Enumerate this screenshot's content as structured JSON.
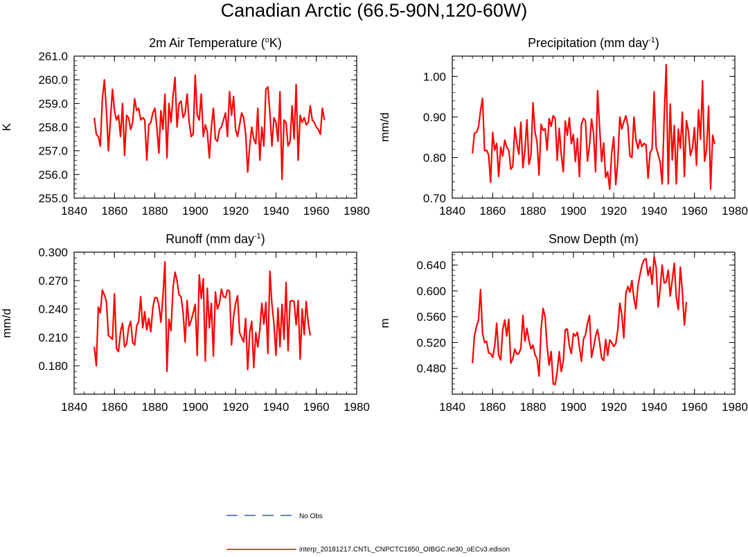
{
  "figure": {
    "title": "Canadian Arctic (66.5-90N,120-60W)"
  },
  "legend": {
    "obs_label": "No Obs",
    "model_label": "interp_20181217.CNTL_CNPCTC1850_OIBGC.ne30_oECv3.edison",
    "obs_color": "#3050ff",
    "model_color": "#ff0000"
  },
  "chart_data": [
    {
      "type": "line",
      "title": "2m Air Temperature (",
      "title_sup": "o",
      "title_end": "K)",
      "ylabel": "K",
      "xlabel": "",
      "xlim": [
        1840,
        1980
      ],
      "ylim": [
        255.0,
        261.0
      ],
      "xticks": [
        1840,
        1860,
        1880,
        1900,
        1920,
        1940,
        1960,
        1980
      ],
      "yticks": [
        255.0,
        256.0,
        257.0,
        258.0,
        259.0,
        260.0,
        261.0
      ],
      "ytick_labels": [
        "255.0",
        "256.0",
        "257.0",
        "258.0",
        "259.0",
        "260.0",
        "261.0"
      ],
      "x_start": 1850,
      "series": [
        {
          "name": "interp_20181217.CNTL_CNPCTC1850_OIBGC.ne30_oECv3.edison",
          "color": "#ff0000",
          "values": [
            258.4,
            257.7,
            257.6,
            257.2,
            259.2,
            260.0,
            258.7,
            257.0,
            258.3,
            259.6,
            258.7,
            258.3,
            258.5,
            257.6,
            259.0,
            256.8,
            258.5,
            258.4,
            257.9,
            258.2,
            259.2,
            258.7,
            258.8,
            258.3,
            258.4,
            258.3,
            256.6,
            258.1,
            258.2,
            258.6,
            258.8,
            258.0,
            256.9,
            258.7,
            257.9,
            259.4,
            256.7,
            259.0,
            258.2,
            259.3,
            260.1,
            258.0,
            259.0,
            259.1,
            258.4,
            258.6,
            259.4,
            258.2,
            257.6,
            257.7,
            260.2,
            258.5,
            258.3,
            259.4,
            257.6,
            258.1,
            257.8,
            256.7,
            258.0,
            258.8,
            257.5,
            257.4,
            257.9,
            258.0,
            258.3,
            258.6,
            257.6,
            259.5,
            258.5,
            259.3,
            257.9,
            257.6,
            258.1,
            258.6,
            258.4,
            257.7,
            256.1,
            257.2,
            258.0,
            257.5,
            257.3,
            258.8,
            256.6,
            258.0,
            257.2,
            259.6,
            259.7,
            258.6,
            257.2,
            258.4,
            258.2,
            257.4,
            259.5,
            255.8,
            258.3,
            258.2,
            257.2,
            257.4,
            258.9,
            257.5,
            259.8,
            256.6,
            258.5,
            258.2,
            258.4,
            258.1,
            258.2,
            258.9,
            258.3,
            258.2,
            258.0,
            257.9,
            257.7,
            258.8,
            258.3
          ]
        }
      ]
    },
    {
      "type": "line",
      "title": "Precipitation (mm day",
      "title_sup": "-1",
      "title_end": ")",
      "ylabel": "mm/d",
      "xlabel": "",
      "xlim": [
        1840,
        1980
      ],
      "ylim": [
        0.7,
        1.05
      ],
      "xticks": [
        1840,
        1860,
        1880,
        1900,
        1920,
        1940,
        1960,
        1980
      ],
      "yticks": [
        0.7,
        0.8,
        0.9,
        1.0
      ],
      "ytick_labels": [
        "0.70",
        "0.80",
        "0.90",
        "1.00"
      ],
      "x_start": 1850,
      "series": [
        {
          "name": "interp_20181217.CNTL_CNPCTC1850_OIBGC.ne30_oECv3.edison",
          "color": "#ff0000",
          "values": [
            0.81,
            0.86,
            0.862,
            0.876,
            0.915,
            0.946,
            0.817,
            0.818,
            0.807,
            0.739,
            0.862,
            0.818,
            0.835,
            0.753,
            0.826,
            0.804,
            0.843,
            0.826,
            0.818,
            0.771,
            0.778,
            0.875,
            0.835,
            0.808,
            0.887,
            0.775,
            0.818,
            0.893,
            0.783,
            0.806,
            0.935,
            0.863,
            0.838,
            0.757,
            0.882,
            0.867,
            0.871,
            0.818,
            0.896,
            0.877,
            0.903,
            0.896,
            0.793,
            0.872,
            0.807,
            0.765,
            0.89,
            0.855,
            0.898,
            0.834,
            0.857,
            0.79,
            0.847,
            0.753,
            0.882,
            0.897,
            0.89,
            0.791,
            0.831,
            0.895,
            0.86,
            0.765,
            0.965,
            0.875,
            0.79,
            0.836,
            0.751,
            0.765,
            0.722,
            0.812,
            0.851,
            0.733,
            0.79,
            0.9,
            0.87,
            0.888,
            0.903,
            0.88,
            0.804,
            0.8,
            0.9,
            0.844,
            0.822,
            0.844,
            0.827,
            0.835,
            0.831,
            0.749,
            0.812,
            0.821,
            0.962,
            0.825,
            0.807,
            0.789,
            0.735,
            0.9,
            1.029,
            0.735,
            0.932,
            0.794,
            0.879,
            0.735,
            0.87,
            0.823,
            0.912,
            0.753,
            0.891,
            0.865,
            0.805,
            0.823,
            0.874,
            0.781,
            0.918,
            0.845,
            0.989,
            0.791,
            0.82,
            0.927,
            0.722,
            0.855,
            0.833
          ]
        }
      ]
    },
    {
      "type": "line",
      "title": "Runoff (mm day",
      "title_sup": "-1",
      "title_end": ")",
      "ylabel": "mm/d",
      "xlabel": "",
      "xlim": [
        1840,
        1980
      ],
      "ylim": [
        0.15,
        0.3
      ],
      "xticks": [
        1840,
        1860,
        1880,
        1900,
        1920,
        1940,
        1960,
        1980
      ],
      "yticks": [
        0.18,
        0.21,
        0.24,
        0.27,
        0.3
      ],
      "ytick_labels": [
        "0.180",
        "0.210",
        "0.240",
        "0.270",
        "0.300"
      ],
      "x_start": 1850,
      "series": [
        {
          "name": "interp_20181217.CNTL_CNPCTC1850_OIBGC.ne30_oECv3.edison",
          "color": "#ff0000",
          "values": [
            0.2,
            0.18,
            0.242,
            0.236,
            0.26,
            0.255,
            0.248,
            0.212,
            0.21,
            0.208,
            0.256,
            0.198,
            0.195,
            0.216,
            0.225,
            0.2,
            0.203,
            0.22,
            0.227,
            0.205,
            0.202,
            0.222,
            0.227,
            0.253,
            0.22,
            0.237,
            0.218,
            0.23,
            0.216,
            0.241,
            0.252,
            0.252,
            0.244,
            0.226,
            0.253,
            0.29,
            0.174,
            0.229,
            0.217,
            0.262,
            0.279,
            0.27,
            0.255,
            0.253,
            0.236,
            0.205,
            0.249,
            0.222,
            0.228,
            0.236,
            0.245,
            0.191,
            0.276,
            0.251,
            0.272,
            0.185,
            0.262,
            0.22,
            0.246,
            0.19,
            0.258,
            0.24,
            0.246,
            0.261,
            0.253,
            0.252,
            0.26,
            0.259,
            0.202,
            0.232,
            0.246,
            0.254,
            0.215,
            0.21,
            0.205,
            0.23,
            0.176,
            0.215,
            0.227,
            0.178,
            0.215,
            0.2,
            0.218,
            0.246,
            0.224,
            0.247,
            0.193,
            0.28,
            0.245,
            0.225,
            0.191,
            0.241,
            0.2,
            0.245,
            0.208,
            0.268,
            0.196,
            0.248,
            0.249,
            0.248,
            0.223,
            0.249,
            0.187,
            0.24,
            0.213,
            0.248,
            0.225,
            0.212
          ]
        }
      ]
    },
    {
      "type": "line",
      "title": "Snow Depth (m)",
      "title_sup": "",
      "title_end": "",
      "ylabel": "m",
      "xlabel": "",
      "xlim": [
        1840,
        1980
      ],
      "ylim": [
        0.44,
        0.66
      ],
      "xticks": [
        1840,
        1860,
        1880,
        1900,
        1920,
        1940,
        1960,
        1980
      ],
      "yticks": [
        0.48,
        0.52,
        0.56,
        0.6,
        0.64
      ],
      "ytick_labels": [
        "0.480",
        "0.520",
        "0.560",
        "0.600",
        "0.640"
      ],
      "x_start": 1850,
      "series": [
        {
          "name": "interp_20181217.CNTL_CNPCTC1850_OIBGC.ne30_oECv3.edison",
          "color": "#ff0000",
          "values": [
            0.488,
            0.53,
            0.545,
            0.555,
            0.602,
            0.535,
            0.52,
            0.522,
            0.504,
            0.503,
            0.497,
            0.514,
            0.55,
            0.5,
            0.493,
            0.54,
            0.555,
            0.53,
            0.556,
            0.488,
            0.495,
            0.51,
            0.502,
            0.503,
            0.511,
            0.562,
            0.522,
            0.542,
            0.523,
            0.51,
            0.516,
            0.501,
            0.495,
            0.468,
            0.54,
            0.573,
            0.56,
            0.513,
            0.485,
            0.506,
            0.456,
            0.455,
            0.475,
            0.506,
            0.475,
            0.491,
            0.54,
            0.541,
            0.515,
            0.503,
            0.534,
            0.53,
            0.536,
            0.514,
            0.491,
            0.525,
            0.532,
            0.55,
            0.562,
            0.497,
            0.512,
            0.53,
            0.54,
            0.52,
            0.496,
            0.492,
            0.525,
            0.5,
            0.524,
            0.52,
            0.514,
            0.518,
            0.54,
            0.581,
            0.563,
            0.527,
            0.596,
            0.607,
            0.598,
            0.616,
            0.588,
            0.572,
            0.608,
            0.625,
            0.64,
            0.648,
            0.65,
            0.624,
            0.637,
            0.61,
            0.653,
            0.637,
            0.575,
            0.603,
            0.64,
            0.612,
            0.614,
            0.632,
            0.592,
            0.617,
            0.643,
            0.59,
            0.571,
            0.637,
            0.598,
            0.547,
            0.583
          ]
        }
      ]
    }
  ]
}
